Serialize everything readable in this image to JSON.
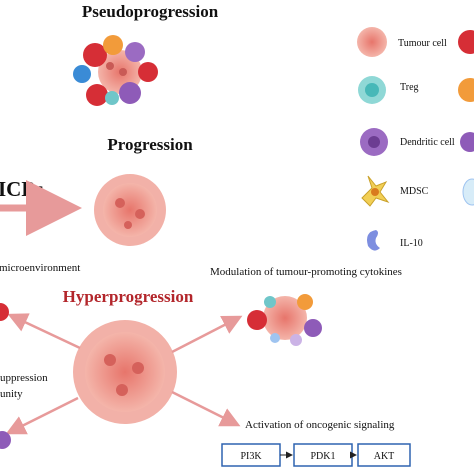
{
  "panels": {
    "pseudoprogression": "Pseudoprogression",
    "progression": "Progression",
    "treatment": "ICBs",
    "hyperprogression": "Hyperprogression"
  },
  "annotations": {
    "microenvironment": "microenvironment",
    "suppression": "uppression",
    "immunity": "unity",
    "cytokines": "Modulation of tumour-promoting cytokines",
    "signaling": "Activation of oncogenic signaling"
  },
  "pathway": {
    "nodes": [
      {
        "label": "PI3K"
      },
      {
        "label": "PDK1"
      },
      {
        "label": "AKT"
      }
    ]
  },
  "legend": {
    "items": [
      {
        "label": "Tumour cell"
      },
      {
        "label": "Treg"
      },
      {
        "label": "Dendritic cell"
      },
      {
        "label": "MDSC"
      },
      {
        "label": "IL-10"
      }
    ]
  }
}
